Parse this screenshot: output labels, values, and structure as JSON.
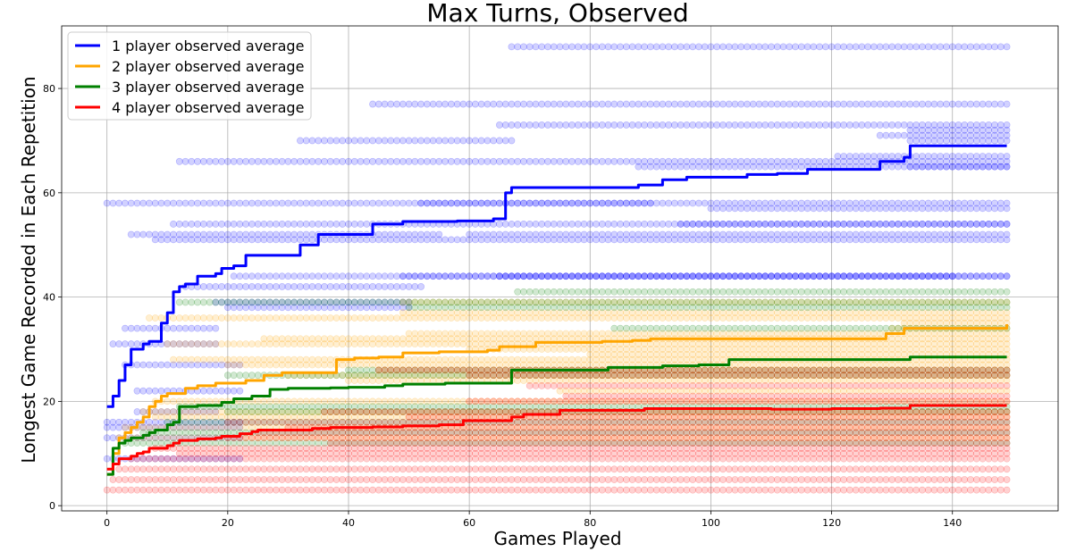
{
  "chart_data": {
    "type": "line",
    "title": "Max Turns, Observed",
    "xlabel": "Games Played",
    "ylabel": "Longest Game Recorded in Each Repetition",
    "xlim": [
      -7.5,
      157.5
    ],
    "ylim": [
      -1,
      92
    ],
    "xticks": [
      0,
      20,
      40,
      60,
      80,
      100,
      120,
      140
    ],
    "yticks": [
      0,
      20,
      40,
      60,
      80
    ],
    "grid": true,
    "legend_position": "top-left",
    "series": [
      {
        "name": "1 player observed average",
        "color": "#0000ff",
        "scatter_color": "#0000ff",
        "steps": [
          [
            0,
            19
          ],
          [
            1,
            21
          ],
          [
            2,
            24
          ],
          [
            3,
            27
          ],
          [
            4,
            30
          ],
          [
            6,
            31
          ],
          [
            7,
            31.5
          ],
          [
            9,
            35
          ],
          [
            10,
            37
          ],
          [
            11,
            41
          ],
          [
            12,
            42
          ],
          [
            13,
            42.5
          ],
          [
            15,
            44
          ],
          [
            18,
            44.5
          ],
          [
            19,
            45.5
          ],
          [
            21,
            46
          ],
          [
            23,
            48
          ],
          [
            32,
            50
          ],
          [
            35,
            52
          ],
          [
            44,
            54
          ],
          [
            49,
            54.5
          ],
          [
            58,
            54.6
          ],
          [
            64,
            55
          ],
          [
            66,
            60
          ],
          [
            67,
            61
          ],
          [
            88,
            61.5
          ],
          [
            92,
            62.5
          ],
          [
            96,
            63
          ],
          [
            106,
            63.5
          ],
          [
            111,
            63.7
          ],
          [
            116,
            64.5
          ],
          [
            122,
            64.5
          ],
          [
            128,
            66
          ],
          [
            132,
            66.8
          ],
          [
            133,
            69
          ],
          [
            149,
            69
          ]
        ],
        "plateaus": [
          [
            0,
            149,
            88,
            67
          ],
          [
            0,
            149,
            77,
            44
          ],
          [
            0,
            149,
            73,
            65
          ],
          [
            0,
            149,
            72,
            133
          ],
          [
            0,
            149,
            71,
            128
          ],
          [
            0,
            149,
            70,
            133
          ],
          [
            0,
            67,
            70,
            32
          ],
          [
            0,
            149,
            67,
            121
          ],
          [
            0,
            149,
            66,
            12
          ],
          [
            0,
            149,
            65,
            88
          ],
          [
            0,
            149,
            65,
            133
          ],
          [
            0,
            149,
            58,
            0
          ],
          [
            0,
            90,
            58,
            52
          ],
          [
            0,
            149,
            57,
            100
          ],
          [
            0,
            149,
            54,
            11
          ],
          [
            0,
            149,
            54,
            95
          ],
          [
            0,
            55,
            52,
            4
          ],
          [
            0,
            149,
            52,
            60
          ],
          [
            0,
            149,
            51,
            8
          ],
          [
            0,
            149,
            44,
            21
          ],
          [
            0,
            149,
            44,
            49
          ],
          [
            0,
            140,
            44,
            65
          ],
          [
            0,
            52,
            42,
            13
          ],
          [
            0,
            50,
            39,
            18
          ],
          [
            0,
            50,
            38,
            20
          ],
          [
            0,
            18,
            34,
            3
          ],
          [
            0,
            18,
            31,
            1
          ],
          [
            0,
            22,
            27,
            3
          ],
          [
            0,
            22,
            22,
            5
          ],
          [
            0,
            18,
            18,
            5
          ],
          [
            0,
            22,
            16,
            0
          ],
          [
            0,
            22,
            15,
            0
          ],
          [
            0,
            22,
            13,
            0
          ],
          [
            0,
            22,
            9,
            0
          ]
        ]
      },
      {
        "name": "2 player observed average",
        "color": "#ffa500",
        "scatter_color": "#ffa500",
        "steps": [
          [
            0,
            6
          ],
          [
            1,
            10
          ],
          [
            2,
            13
          ],
          [
            3,
            14
          ],
          [
            4,
            15
          ],
          [
            5,
            16
          ],
          [
            6,
            17
          ],
          [
            7,
            19
          ],
          [
            8,
            20
          ],
          [
            9,
            21
          ],
          [
            10,
            21.5
          ],
          [
            12,
            21.5
          ],
          [
            13,
            22.5
          ],
          [
            15,
            23
          ],
          [
            18,
            23.5
          ],
          [
            23,
            24
          ],
          [
            26,
            25
          ],
          [
            29,
            25.5
          ],
          [
            33,
            25.5
          ],
          [
            38,
            28
          ],
          [
            41,
            28.3
          ],
          [
            45,
            28.5
          ],
          [
            49,
            29.3
          ],
          [
            55,
            29.5
          ],
          [
            63,
            29.8
          ],
          [
            65,
            30.5
          ],
          [
            71,
            31.3
          ],
          [
            74,
            31.3
          ],
          [
            82,
            31.5
          ],
          [
            87,
            31.7
          ],
          [
            90,
            32
          ],
          [
            120,
            32
          ],
          [
            127,
            32
          ],
          [
            129,
            33
          ],
          [
            132,
            34
          ],
          [
            149,
            34.8
          ]
        ],
        "plateaus": [
          [
            0,
            149,
            39,
            49
          ],
          [
            0,
            149,
            37,
            49
          ],
          [
            0,
            149,
            36,
            7
          ],
          [
            0,
            149,
            35,
            132
          ],
          [
            0,
            149,
            34,
            130
          ],
          [
            0,
            149,
            33,
            50
          ],
          [
            0,
            149,
            32,
            26
          ],
          [
            0,
            149,
            31,
            10
          ],
          [
            0,
            149,
            30,
            60
          ],
          [
            0,
            149,
            29,
            80
          ],
          [
            0,
            149,
            28,
            11
          ],
          [
            0,
            149,
            27,
            20
          ],
          [
            0,
            149,
            26,
            45
          ],
          [
            0,
            149,
            25,
            30
          ],
          [
            0,
            149,
            24,
            40
          ],
          [
            0,
            149,
            22,
            75
          ],
          [
            0,
            149,
            20,
            8
          ],
          [
            0,
            149,
            18,
            6
          ],
          [
            0,
            149,
            17,
            8
          ],
          [
            0,
            149,
            15,
            3
          ],
          [
            0,
            149,
            13,
            2
          ]
        ]
      },
      {
        "name": "3 player observed average",
        "color": "#008000",
        "scatter_color": "#008000",
        "steps": [
          [
            0,
            6
          ],
          [
            1,
            11
          ],
          [
            2,
            12
          ],
          [
            3,
            12.5
          ],
          [
            4,
            13
          ],
          [
            6,
            13.5
          ],
          [
            7,
            14
          ],
          [
            8,
            14.5
          ],
          [
            10,
            15.5
          ],
          [
            11,
            16
          ],
          [
            12,
            19
          ],
          [
            15,
            19.2
          ],
          [
            19,
            19.8
          ],
          [
            21,
            20.5
          ],
          [
            24,
            21
          ],
          [
            26,
            21
          ],
          [
            27,
            22.3
          ],
          [
            30,
            22.5
          ],
          [
            37,
            22.6
          ],
          [
            40,
            22.7
          ],
          [
            46,
            23
          ],
          [
            49,
            23.3
          ],
          [
            56,
            23.5
          ],
          [
            60,
            23.5
          ],
          [
            67,
            26
          ],
          [
            73,
            26
          ],
          [
            83,
            26.5
          ],
          [
            92,
            26.8
          ],
          [
            98,
            27
          ],
          [
            103,
            28
          ],
          [
            120,
            28
          ],
          [
            133,
            28.5
          ],
          [
            149,
            28.5
          ]
        ],
        "plateaus": [
          [
            0,
            149,
            41,
            68
          ],
          [
            0,
            149,
            39,
            12
          ],
          [
            0,
            149,
            38,
            50
          ],
          [
            0,
            149,
            34,
            84
          ],
          [
            0,
            149,
            26,
            40
          ],
          [
            0,
            149,
            25,
            20
          ],
          [
            0,
            149,
            19,
            12
          ],
          [
            0,
            149,
            18,
            20
          ],
          [
            0,
            149,
            16,
            10
          ],
          [
            0,
            149,
            14,
            6
          ],
          [
            0,
            149,
            12,
            3
          ]
        ]
      },
      {
        "name": "4 player observed average",
        "color": "#ff0000",
        "scatter_color": "#ff0000",
        "steps": [
          [
            0,
            7
          ],
          [
            1,
            8
          ],
          [
            2,
            9
          ],
          [
            4,
            9.5
          ],
          [
            5,
            10
          ],
          [
            6,
            10.3
          ],
          [
            7,
            11
          ],
          [
            10,
            11.5
          ],
          [
            11,
            12
          ],
          [
            12,
            12.5
          ],
          [
            15,
            12.8
          ],
          [
            18,
            13
          ],
          [
            19,
            13.3
          ],
          [
            22,
            13.8
          ],
          [
            24,
            14.2
          ],
          [
            25,
            14.5
          ],
          [
            34,
            14.8
          ],
          [
            37,
            15
          ],
          [
            44,
            15.1
          ],
          [
            49,
            15.3
          ],
          [
            55,
            15.5
          ],
          [
            59,
            16.3
          ],
          [
            67,
            17
          ],
          [
            69,
            17.5
          ],
          [
            75,
            18.3
          ],
          [
            89,
            18.6
          ],
          [
            110,
            18.5
          ],
          [
            120,
            18.6
          ],
          [
            128,
            18.7
          ],
          [
            133,
            19.2
          ],
          [
            149,
            19.2
          ]
        ],
        "plateaus": [
          [
            0,
            149,
            26,
            45
          ],
          [
            0,
            149,
            25,
            60
          ],
          [
            0,
            149,
            23,
            70
          ],
          [
            0,
            149,
            21,
            76
          ],
          [
            0,
            149,
            20,
            60
          ],
          [
            0,
            149,
            18,
            36
          ],
          [
            0,
            149,
            17,
            50
          ],
          [
            0,
            149,
            16,
            20
          ],
          [
            0,
            149,
            15,
            30
          ],
          [
            0,
            149,
            14,
            25
          ],
          [
            0,
            149,
            13,
            20
          ],
          [
            0,
            149,
            12,
            37
          ],
          [
            0,
            149,
            11,
            8
          ],
          [
            0,
            149,
            10,
            12
          ],
          [
            0,
            149,
            9,
            4
          ],
          [
            0,
            149,
            7,
            2
          ],
          [
            0,
            149,
            5,
            1
          ],
          [
            0,
            149,
            3,
            0
          ]
        ]
      }
    ]
  }
}
